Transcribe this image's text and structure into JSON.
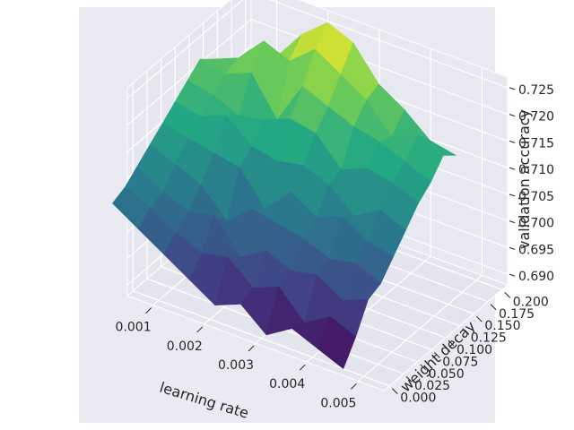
{
  "chart_data": {
    "type": "surface3d",
    "title": "",
    "xlabel": "learning rate",
    "ylabel": "weight decay",
    "zlabel": "validation accuracy",
    "x_ticks": [
      "0.001",
      "0.002",
      "0.003",
      "0.004",
      "0.005"
    ],
    "y_ticks": [
      "0.000",
      "0.025",
      "0.050",
      "0.075",
      "0.100",
      "0.125",
      "0.150",
      "0.175",
      "0.200"
    ],
    "z_ticks": [
      "0.690",
      "0.695",
      "0.700",
      "0.705",
      "0.710",
      "0.715",
      "0.720",
      "0.725"
    ],
    "xlim": [
      0.0005,
      0.0055
    ],
    "ylim": [
      -0.01,
      0.21
    ],
    "zlim": [
      0.688,
      0.727
    ],
    "colormap": "viridis",
    "colormap_stops": [
      "#440154",
      "#414487",
      "#2a788e",
      "#22a884",
      "#7ad151",
      "#fde725"
    ],
    "pane_color": "#eaeaf2",
    "grid_color": "#ffffff",
    "grid": true,
    "x": [
      0.0001,
      0.0006,
      0.0011,
      0.0016,
      0.0021,
      0.0026,
      0.0031,
      0.0036,
      0.0041,
      0.0046
    ],
    "y": [
      0.0,
      0.0222,
      0.0444,
      0.0667,
      0.0889,
      0.1111,
      0.1333,
      0.1556,
      0.1778,
      0.2
    ],
    "z": [
      [
        0.703,
        0.704,
        0.706,
        0.708,
        0.71,
        0.712,
        0.714,
        0.716,
        0.714,
        0.712
      ],
      [
        0.7,
        0.702,
        0.703,
        0.706,
        0.709,
        0.711,
        0.713,
        0.715,
        0.716,
        0.713
      ],
      [
        0.697,
        0.699,
        0.701,
        0.704,
        0.708,
        0.713,
        0.711,
        0.717,
        0.721,
        0.716
      ],
      [
        0.694,
        0.697,
        0.702,
        0.699,
        0.707,
        0.709,
        0.712,
        0.71,
        0.719,
        0.722
      ],
      [
        0.691,
        0.698,
        0.696,
        0.703,
        0.701,
        0.708,
        0.714,
        0.718,
        0.723,
        0.726
      ],
      [
        0.693,
        0.694,
        0.699,
        0.702,
        0.706,
        0.709,
        0.713,
        0.716,
        0.72,
        0.724
      ],
      [
        0.689,
        0.696,
        0.697,
        0.701,
        0.703,
        0.707,
        0.708,
        0.714,
        0.717,
        0.718
      ],
      [
        0.692,
        0.691,
        0.698,
        0.699,
        0.705,
        0.703,
        0.71,
        0.713,
        0.712,
        0.715
      ],
      [
        0.69,
        0.694,
        0.695,
        0.7,
        0.702,
        0.706,
        0.709,
        0.711,
        0.714,
        0.711
      ],
      [
        0.688,
        0.692,
        0.697,
        0.698,
        0.701,
        0.704,
        0.707,
        0.709,
        0.712,
        0.71
      ]
    ]
  }
}
